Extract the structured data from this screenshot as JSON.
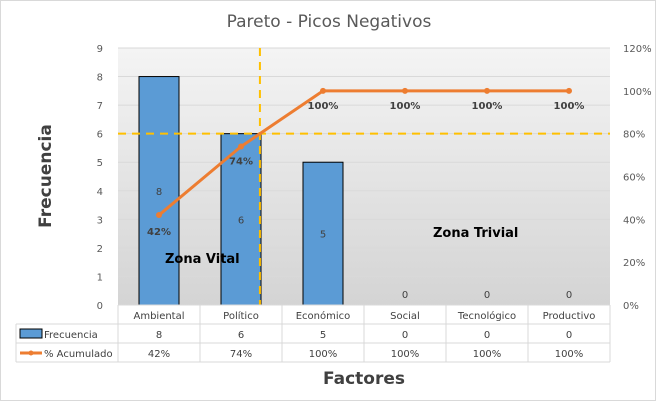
{
  "chart_data": {
    "type": "bar",
    "title": "Pareto - Picos Negativos",
    "xlabel": "Factores",
    "ylabel": "Frecuencia",
    "categories": [
      "Ambiental",
      "Político",
      "Económico",
      "Social",
      "Tecnológico",
      "Productivo"
    ],
    "series": [
      {
        "name": "Frecuencia",
        "type": "bar",
        "values": [
          8,
          6,
          5,
          0,
          0,
          0
        ],
        "labels": [
          "8",
          "6",
          "5",
          "0",
          "0",
          "0"
        ],
        "color": "#5b9bd5"
      },
      {
        "name": "% Acumulado",
        "type": "line",
        "axis": "right",
        "values": [
          42,
          74,
          100,
          100,
          100,
          100
        ],
        "labels": [
          "42%",
          "74%",
          "100%",
          "100%",
          "100%",
          "100%"
        ],
        "color": "#ed7d31"
      }
    ],
    "ylim": [
      0,
      9
    ],
    "yticks": [
      "0",
      "1",
      "2",
      "3",
      "4",
      "5",
      "6",
      "7",
      "8",
      "9"
    ],
    "y2lim": [
      0,
      120
    ],
    "y2ticks": [
      "0%",
      "20%",
      "40%",
      "60%",
      "80%",
      "100%",
      "120%"
    ],
    "threshold_percent": 80,
    "threshold_color": "#ffc000",
    "annotations": [
      "Zona Vital",
      "Zona Trivial"
    ],
    "grid": true,
    "data_table": true
  }
}
